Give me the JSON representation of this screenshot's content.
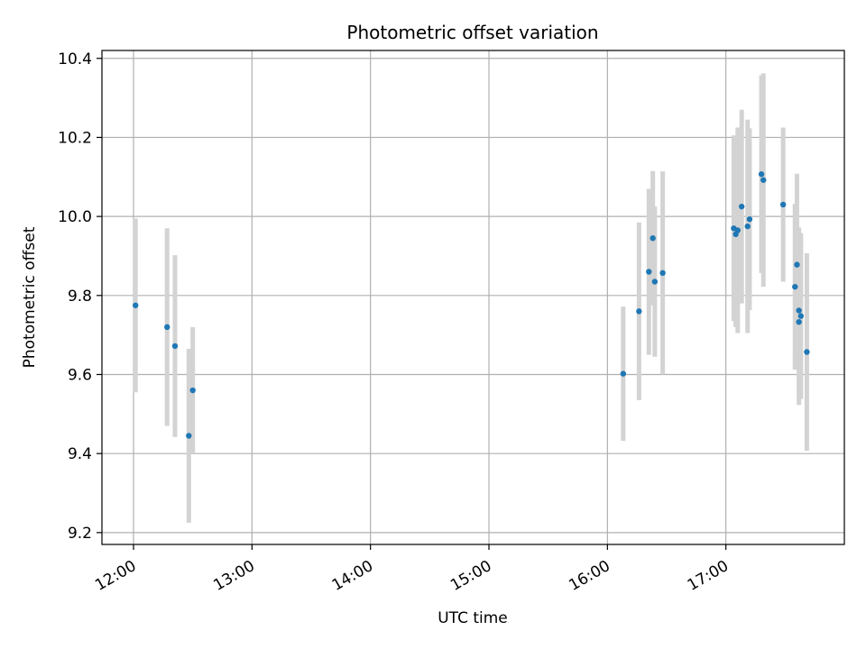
{
  "chart_data": {
    "type": "scatter",
    "title": "Photometric offset variation",
    "xlabel": "UTC time",
    "ylabel": "Photometric offset",
    "x_ticks": [
      "12:00",
      "13:00",
      "14:00",
      "15:00",
      "16:00",
      "17:00"
    ],
    "y_ticks": [
      "9.2",
      "9.4",
      "9.6",
      "9.8",
      "10.0",
      "10.2",
      "10.4"
    ],
    "xlim": [
      "11:44",
      "18:00"
    ],
    "ylim": [
      9.17,
      10.42
    ],
    "grid": true,
    "legend": "none",
    "colors": {
      "point": "#1f77b4",
      "errorbar": "#d3d3d3",
      "grid": "#b0b0b0",
      "axis": "#000000"
    },
    "points": [
      {
        "time": "12:01",
        "y": 9.775,
        "err_lo": 9.555,
        "err_hi": 9.995
      },
      {
        "time": "12:17",
        "y": 9.72,
        "err_lo": 9.47,
        "err_hi": 9.97
      },
      {
        "time": "12:21",
        "y": 9.672,
        "err_lo": 9.442,
        "err_hi": 9.902
      },
      {
        "time": "12:28",
        "y": 9.445,
        "err_lo": 9.225,
        "err_hi": 9.665
      },
      {
        "time": "12:30",
        "y": 9.56,
        "err_lo": 9.4,
        "err_hi": 9.72
      },
      {
        "time": "16:08",
        "y": 9.602,
        "err_lo": 9.432,
        "err_hi": 9.772
      },
      {
        "time": "16:16",
        "y": 9.76,
        "err_lo": 9.535,
        "err_hi": 9.985
      },
      {
        "time": "16:21",
        "y": 9.86,
        "err_lo": 9.65,
        "err_hi": 10.07
      },
      {
        "time": "16:23",
        "y": 9.945,
        "err_lo": 9.775,
        "err_hi": 10.115
      },
      {
        "time": "16:24",
        "y": 9.835,
        "err_lo": 9.645,
        "err_hi": 10.025
      },
      {
        "time": "16:28",
        "y": 9.857,
        "err_lo": 9.6,
        "err_hi": 10.114
      },
      {
        "time": "17:04",
        "y": 9.97,
        "err_lo": 9.735,
        "err_hi": 10.205
      },
      {
        "time": "17:05",
        "y": 9.955,
        "err_lo": 9.72,
        "err_hi": 10.19
      },
      {
        "time": "17:06",
        "y": 9.965,
        "err_lo": 9.705,
        "err_hi": 10.225
      },
      {
        "time": "17:08",
        "y": 10.025,
        "err_lo": 9.78,
        "err_hi": 10.27
      },
      {
        "time": "17:11",
        "y": 9.975,
        "err_lo": 9.705,
        "err_hi": 10.245
      },
      {
        "time": "17:12",
        "y": 9.993,
        "err_lo": 9.763,
        "err_hi": 10.223
      },
      {
        "time": "17:18",
        "y": 10.107,
        "err_lo": 9.857,
        "err_hi": 10.357
      },
      {
        "time": "17:19",
        "y": 10.092,
        "err_lo": 9.822,
        "err_hi": 10.362
      },
      {
        "time": "17:29",
        "y": 10.03,
        "err_lo": 9.835,
        "err_hi": 10.225
      },
      {
        "time": "17:35",
        "y": 9.822,
        "err_lo": 9.612,
        "err_hi": 10.032
      },
      {
        "time": "17:36",
        "y": 9.878,
        "err_lo": 9.648,
        "err_hi": 10.108
      },
      {
        "time": "17:37",
        "y": 9.762,
        "err_lo": 9.552,
        "err_hi": 9.972
      },
      {
        "time": "17:37",
        "y": 9.733,
        "err_lo": 9.523,
        "err_hi": 9.943
      },
      {
        "time": "17:38",
        "y": 9.748,
        "err_lo": 9.538,
        "err_hi": 9.958
      },
      {
        "time": "17:41",
        "y": 9.657,
        "err_lo": 9.407,
        "err_hi": 9.907
      }
    ]
  }
}
